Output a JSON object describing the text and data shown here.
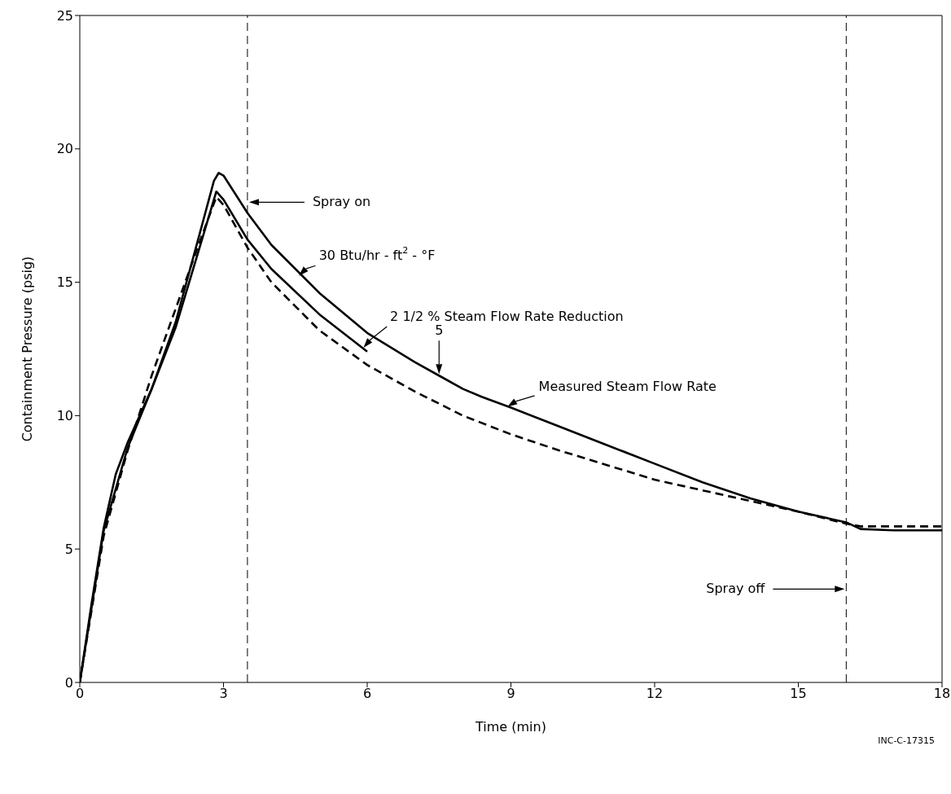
{
  "chart_data": {
    "type": "line",
    "xlabel": "Time (min)",
    "ylabel": "Containment Pressure (psig)",
    "xlim": [
      0,
      18
    ],
    "xticks": [
      0,
      3,
      6,
      9,
      12,
      15,
      18
    ],
    "ylim": [
      0,
      25
    ],
    "yticks": [
      0,
      5,
      10,
      15,
      20,
      25
    ],
    "marker": "none",
    "series": [
      {
        "color": "#000000",
        "line_style": "solid",
        "x": [
          0,
          0.25,
          0.5,
          0.75,
          1,
          1.5,
          2,
          2.5,
          2.8,
          2.9,
          3,
          3.5,
          4,
          5,
          6,
          7,
          7.5,
          8,
          8.4,
          9,
          10,
          11,
          12,
          13,
          14,
          15,
          16,
          16.3,
          17,
          18
        ],
        "values": [
          0,
          3,
          5.8,
          7.8,
          9,
          11,
          13.5,
          16.8,
          18.8,
          19.1,
          19,
          17.6,
          16.4,
          14.6,
          13.1,
          12,
          11.5,
          11,
          10.7,
          10.3,
          9.6,
          8.9,
          8.2,
          7.5,
          6.9,
          6.4,
          6,
          5.75,
          5.7,
          5.7
        ]
      },
      {
        "color": "#000000",
        "line_style": "solid",
        "x": [
          0,
          0.5,
          1,
          1.5,
          2,
          2.5,
          2.85,
          3,
          3.5,
          4,
          5,
          6
        ],
        "values": [
          0,
          5.7,
          8.8,
          11,
          13.3,
          16.3,
          18.4,
          18.1,
          16.6,
          15.5,
          13.8,
          12.4
        ]
      },
      {
        "color": "#000000",
        "line_style": "dashed",
        "x": [
          0,
          0.5,
          1,
          1.5,
          2,
          2.5,
          2.85,
          3,
          3.5,
          4,
          5,
          6,
          7,
          8,
          9,
          10,
          12,
          14,
          15,
          16,
          16.3,
          18
        ],
        "values": [
          0,
          5.5,
          8.7,
          11.5,
          14,
          16.5,
          18.2,
          17.9,
          16.3,
          15,
          13.2,
          11.9,
          10.9,
          10,
          9.3,
          8.7,
          7.6,
          6.8,
          6.4,
          5.95,
          5.85,
          5.85
        ]
      }
    ],
    "ref_lines": [
      {
        "axis": "x",
        "value": 3.5,
        "label": "Spray on",
        "line_style": "dashed",
        "color": "#000000"
      },
      {
        "axis": "x",
        "value": 16,
        "label": "Spray off",
        "line_style": "dashed",
        "color": "#000000"
      }
    ],
    "annotations": [
      {
        "text": "30 Btu/hr - ft$^{2}$ - °F",
        "x": 4.55,
        "y": 15.2
      },
      {
        "text": "2 1/2 % Steam Flow Rate Reduction",
        "x": 5.9,
        "y": 12.5
      },
      {
        "text": "5",
        "x": 7.5,
        "y": 11.5
      },
      {
        "text": "Measured Steam Flow Rate",
        "x": 8.9,
        "y": 10.3
      },
      "INC-C-17315"
    ]
  }
}
